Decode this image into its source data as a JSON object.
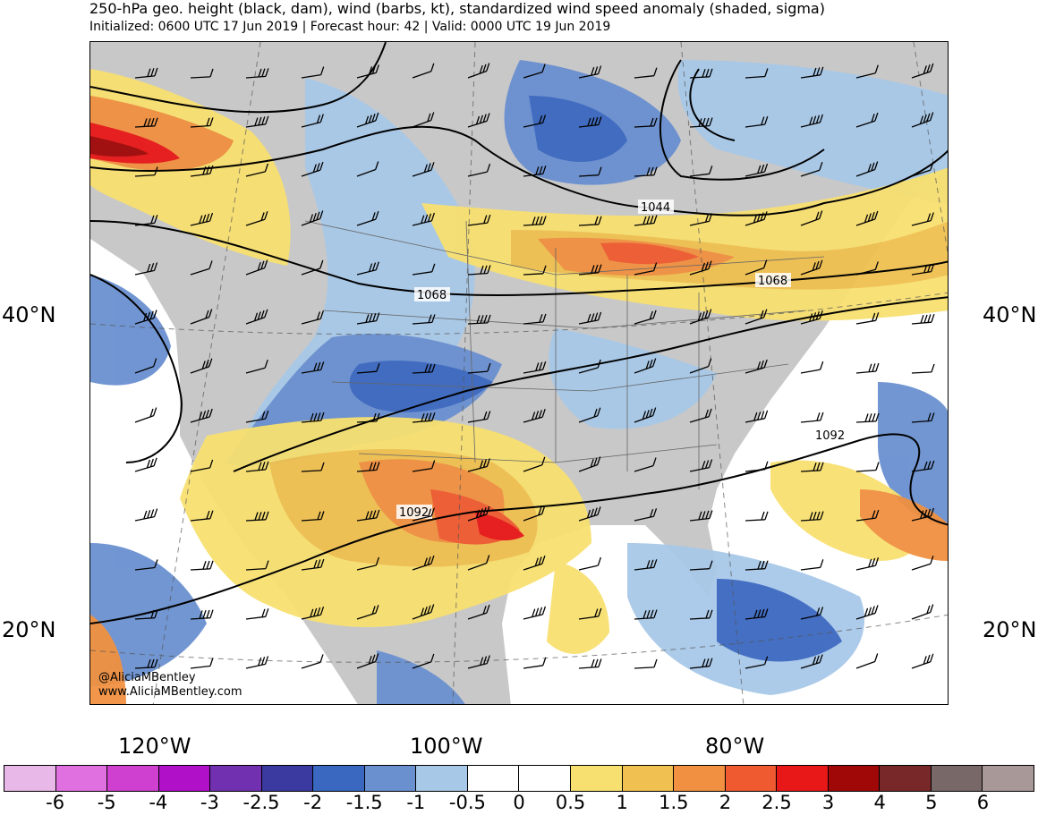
{
  "header": {
    "title": "250-hPa geo. height (black, dam), wind (barbs, kt), standardized wind speed anomaly (shaded, sigma)",
    "subtitle": "Initialized: 0600 UTC 17 Jun 2019 | Forecast hour: 42 | Valid: 0000 UTC 19 Jun 2019"
  },
  "map": {
    "lat_labels": [
      "40°N",
      "20°N"
    ],
    "lon_labels": [
      "120°W",
      "100°W",
      "80°W"
    ],
    "contour_labels": [
      "1044",
      "1068",
      "1068",
      "1092",
      "1092"
    ],
    "land_color": "#c8c8c8",
    "ocean_color": "#ffffff"
  },
  "credit": {
    "line1": "@AliciaMBentley",
    "line2": "www.AliciaMBentley.com"
  },
  "colorbar": {
    "colors": [
      "#e8b8e8",
      "#e070e0",
      "#d040d0",
      "#b010c8",
      "#7030b0",
      "#3a3aa0",
      "#3a68c0",
      "#6a90d0",
      "#a8c8e8",
      "#ffffff",
      "#ffffff",
      "#f8e070",
      "#f0c050",
      "#f09040",
      "#f05a30",
      "#e81818",
      "#a00808",
      "#782828",
      "#786868",
      "#a89898"
    ],
    "labels": [
      "-6",
      "-5",
      "-4",
      "-3",
      "-2.5",
      "-2",
      "-1.5",
      "-1",
      "-0.5",
      "0",
      "0.5",
      "1",
      "1.5",
      "2",
      "2.5",
      "3",
      "4",
      "5",
      "6"
    ]
  }
}
